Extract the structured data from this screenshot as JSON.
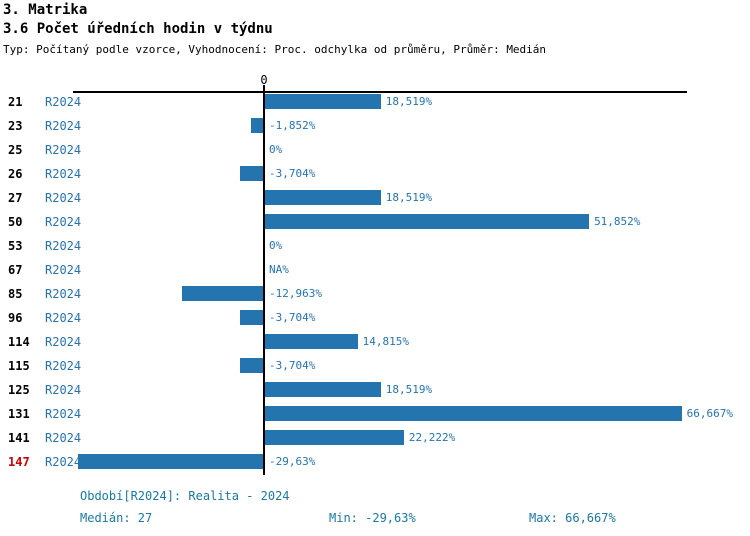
{
  "header": {
    "title": "3. Matrika",
    "subtitle": "3.6 Počet úředních hodin v týdnu",
    "meta": "Typ: Počítaný podle vzorce, Vyhodnocení: Proc. odchylka od průměru, Průměr: Medián"
  },
  "chart_data": {
    "type": "bar",
    "orientation": "horizontal",
    "title": "3.6 Počet úředních hodin v týdnu",
    "xlabel": "",
    "ylabel": "",
    "categories": [
      "21",
      "23",
      "25",
      "26",
      "27",
      "50",
      "53",
      "67",
      "85",
      "96",
      "114",
      "115",
      "125",
      "131",
      "141",
      "147"
    ],
    "series": [
      {
        "name": "R2024",
        "values": [
          18.519,
          -1.852,
          0,
          -3.704,
          18.519,
          51.852,
          0,
          null,
          -12.963,
          -3.704,
          14.815,
          -3.704,
          18.519,
          66.667,
          22.222,
          -29.63
        ]
      }
    ],
    "value_labels": [
      "18,519%",
      "-1,852%",
      "0%",
      "-3,704%",
      "18,519%",
      "51,852%",
      "0%",
      "NA%",
      "-12,963%",
      "-3,704%",
      "14,815%",
      "-3,704%",
      "18,519%",
      "66,667%",
      "22,222%",
      "-29,63%"
    ],
    "zero_tick_label": "0",
    "xlim": [
      -30.5,
      68
    ],
    "grid": false,
    "legend": false,
    "highlight_category": "147"
  },
  "footer": {
    "period_line": "Období[R2024]: Realita - 2024",
    "median": "Medián: 27",
    "min": "Min: -29,63%",
    "max": "Max: 66,667%"
  },
  "colors": {
    "bar": "#2474b0",
    "series_text": "#2474b4",
    "value_text": "#2474b4",
    "footer_text": "#1879a8",
    "highlight_id": "#cc0000",
    "axis": "#000000"
  }
}
